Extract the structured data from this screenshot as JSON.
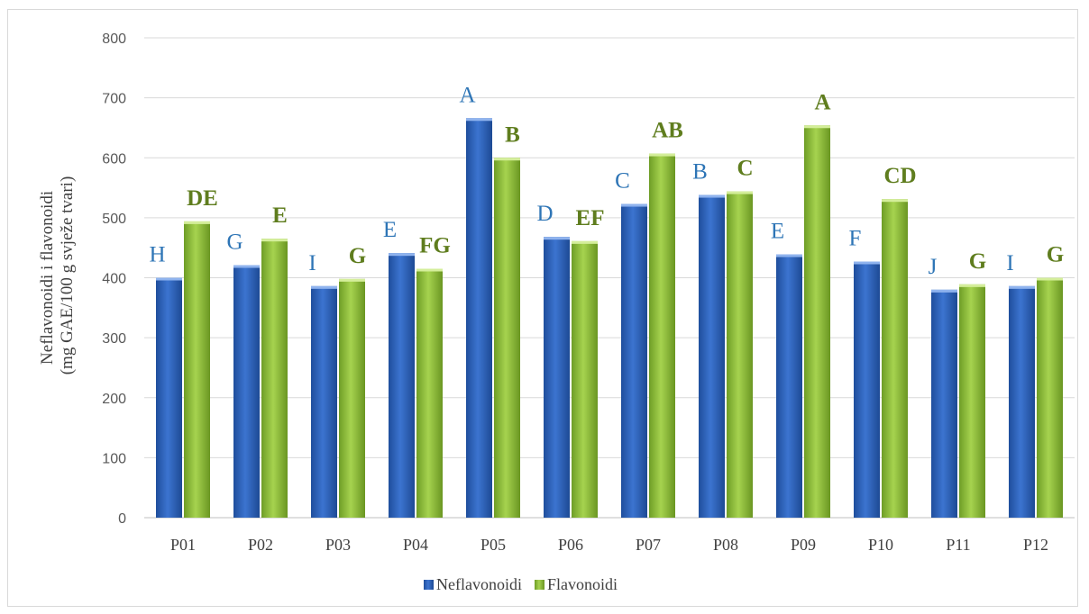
{
  "chart_data": {
    "type": "bar",
    "categories": [
      "P01",
      "P02",
      "P03",
      "P04",
      "P05",
      "P06",
      "P07",
      "P08",
      "P09",
      "P10",
      "P11",
      "P12"
    ],
    "series": [
      {
        "name": "Neflavonoidi",
        "color": "#2e63c0",
        "values": [
          400,
          421,
          386,
          441,
          666,
          468,
          523,
          538,
          439,
          427,
          380,
          386
        ],
        "labels": [
          "H",
          "G",
          "I",
          "E",
          "A",
          "D",
          "C",
          "B",
          "E",
          "F",
          "J",
          "I"
        ]
      },
      {
        "name": "Flavonoidi",
        "color": "#8cbf3f",
        "values": [
          494,
          465,
          398,
          415,
          600,
          461,
          607,
          544,
          654,
          531,
          389,
          400
        ],
        "labels": [
          "DE",
          "E",
          "G",
          "FG",
          "B",
          "EF",
          "AB",
          "C",
          "A",
          "CD",
          "G",
          "G"
        ]
      }
    ],
    "ylabel_line1": "Neflavonoidi i flavonoidi",
    "ylabel_line2": "(mg GAE/100 g svježe tvari)",
    "ylim": [
      0,
      800
    ],
    "yticks": [
      0,
      100,
      200,
      300,
      400,
      500,
      600,
      700,
      800
    ],
    "grid": true,
    "legend_position": "bottom",
    "label_colors": {
      "Neflavonoidi": "#2e75b6",
      "Flavonoidi": "#5f7d1e"
    }
  }
}
